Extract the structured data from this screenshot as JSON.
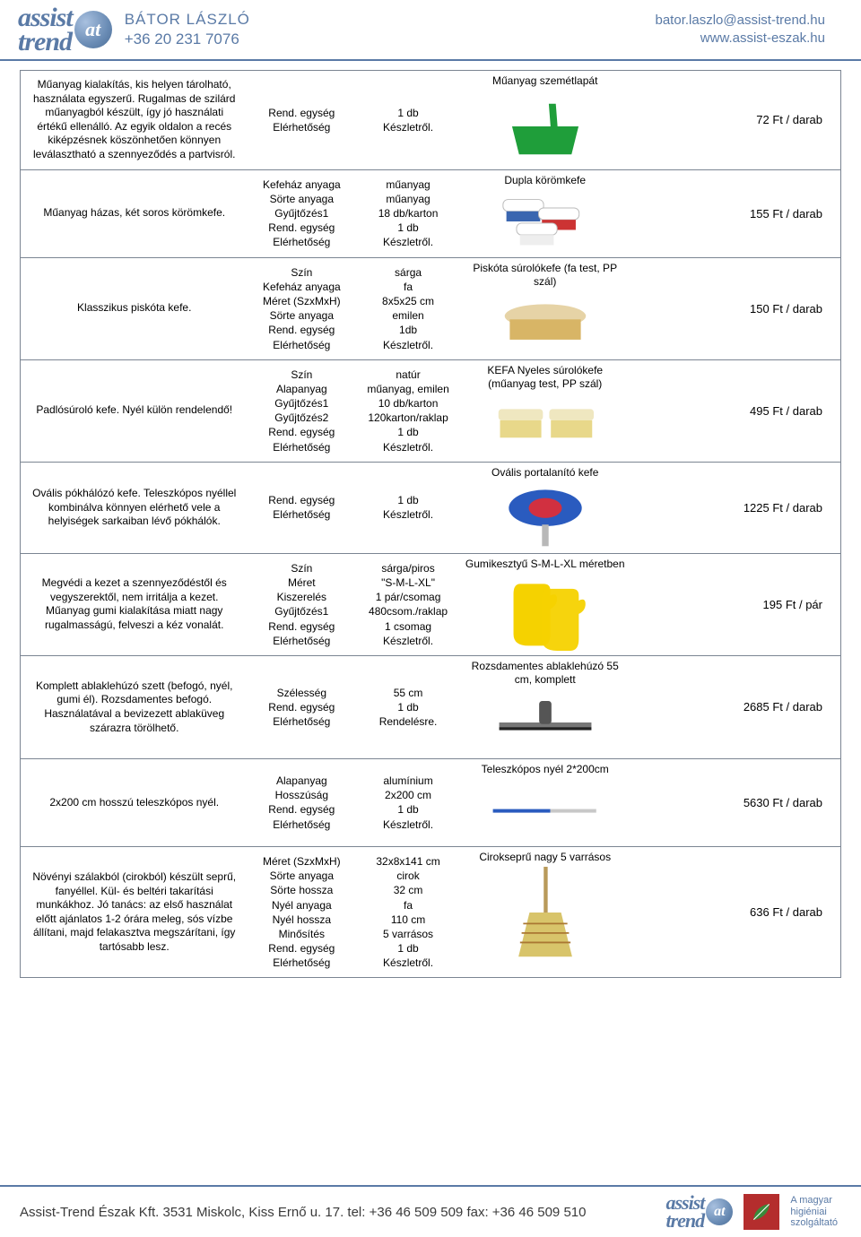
{
  "header": {
    "brand_top": "assist",
    "brand_bottom": "trend",
    "brand_initials": "at",
    "contact_name": "BÁTOR LÁSZLÓ",
    "contact_phone": "+36 20 231 7076",
    "email": "bator.laszlo@assist-trend.hu",
    "website": "www.assist-eszak.hu"
  },
  "footer": {
    "company_line": "Assist-Trend Észak Kft. 3531 Miskolc, Kiss Ernő u. 17. tel: +36 46 509 509 fax: +36 46 509 510",
    "slogan_l1": "A magyar",
    "slogan_l2": "higiéniai",
    "slogan_l3": "szolgáltató",
    "badge_text": "MAGYAR"
  },
  "colors": {
    "rule": "#5a7aa6",
    "border": "#7b8592"
  },
  "rows": [
    {
      "desc": "Műanyag kialakítás, kis helyen tárolható, használata egyszerű. Rugalmas de szilárd műanyagból készült, így jó használati értékű ellenálló. Az egyik oldalon a recés kiképzésnek köszönhetően könnyen leválasztható a szennyeződés a partvisról.",
      "labels": [
        "Rend. egység",
        "Elérhetőség"
      ],
      "values": [
        "1 db",
        "Készletről."
      ],
      "title": "Műanyag szemétlapát",
      "price": "72 Ft / darab",
      "image": {
        "type": "dustpan",
        "fill": "#1f9e3a"
      }
    },
    {
      "desc": "Műanyag házas, két soros körömkefe.",
      "labels": [
        "Kefeház anyaga",
        "Sörte anyaga",
        "Gyűjtőzés1",
        "Rend. egység",
        "Elérhetőség"
      ],
      "values": [
        "műanyag",
        "műanyag",
        "18 db/karton",
        "1 db",
        "Készletről."
      ],
      "title": "Dupla körömkefe",
      "price": "155 Ft / darab",
      "image": {
        "type": "nailbrushes"
      }
    },
    {
      "desc": "Klasszikus piskóta kefe.",
      "labels": [
        "Szín",
        "Kefeház anyaga",
        "Méret (SzxMxH)",
        "Sörte anyaga",
        "Rend. egység",
        "Elérhetőség"
      ],
      "values": [
        "sárga",
        "fa",
        "8x5x25 cm",
        "emilen",
        "1db",
        "Készletről."
      ],
      "title": "Piskóta súrolókefe (fa test, PP szál)",
      "price": "150 Ft / darab",
      "image": {
        "type": "woodbrush",
        "bristle": "#d8b566",
        "handle": "#e6d3a6"
      }
    },
    {
      "desc": "Padlósúroló kefe. Nyél külön rendelendő!",
      "labels": [
        "Szín",
        "Alapanyag",
        "Gyűjtőzés1",
        "Gyűjtőzés2",
        "Rend. egység",
        "Elérhetőség"
      ],
      "values": [
        "natúr",
        "műanyag, emilen",
        "10 db/karton",
        "120karton/raklap",
        "1 db",
        "Készletről."
      ],
      "title": "KEFA Nyeles súrolókefe (műanyag test, PP szál)",
      "price": "495 Ft / darab",
      "image": {
        "type": "deckbrush",
        "bristle": "#e8d88a",
        "body": "#efe7c0"
      }
    },
    {
      "desc": "Ovális pókhálózó kefe. Teleszkópos nyéllel kombinálva könnyen elérhető vele a helyiségek sarkaiban lévő pókhálók.",
      "labels": [
        "Rend. egység",
        "Elérhetőség"
      ],
      "values": [
        "1 db",
        "Készletről."
      ],
      "title": "Ovális portalanító kefe",
      "price": "1225 Ft / darab",
      "image": {
        "type": "duster"
      }
    },
    {
      "desc": "Megvédi a kezet a szennyeződéstől és vegyszerektől, nem irritálja a kezet. Műanyag gumi kialakítása miatt nagy rugalmasságú, felveszi a kéz vonalát.",
      "labels": [
        "Szín",
        "Méret",
        "Kiszerelés",
        "Gyűjtőzés1",
        "Rend. egység",
        "Elérhetőség"
      ],
      "values": [
        "sárga/piros",
        "\"S-M-L-XL\"",
        "1 pár/csomag",
        "480csom./raklap",
        "1 csomag",
        "Készletről."
      ],
      "title": "Gumikesztyű S-M-L-XL méretben",
      "price": "195 Ft / pár",
      "image": {
        "type": "gloves",
        "fill": "#f5d200"
      }
    },
    {
      "desc": "Komplett ablaklehúzó szett (befogó, nyél, gumi él). Rozsdamentes befogó. Használatával a bevizezett ablaküveg szárazra törölhető.",
      "labels": [
        "Szélesség",
        "Rend. egység",
        "Elérhetőség"
      ],
      "values": [
        "55 cm",
        "1 db",
        "Rendelésre."
      ],
      "title": "Rozsdamentes ablaklehúzó 55 cm, komplett",
      "price": "2685 Ft / darab",
      "image": {
        "type": "squeegee"
      }
    },
    {
      "desc": "2x200 cm hosszú teleszkópos nyél.",
      "labels": [
        "Alapanyag",
        "Hosszúság",
        "Rend. egység",
        "Elérhetőség"
      ],
      "values": [
        "alumínium",
        "2x200 cm",
        "1 db",
        "Készletről."
      ],
      "title": "Teleszkópos nyél 2*200cm",
      "price": "5630 Ft / darab",
      "image": {
        "type": "pole"
      }
    },
    {
      "desc": "Növényi szálakból (cirokból) készült seprű, fanyéllel. Kül- és beltéri takarítási munkákhoz. Jó tanács: az első használat előtt ajánlatos 1-2 órára meleg, sós vízbe állítani, majd felakasztva megszárítani, így tartósabb lesz.",
      "labels": [
        "Méret (SzxMxH)",
        "Sörte anyaga",
        "Sörte hossza",
        "Nyél anyaga",
        "Nyél hossza",
        "Minősítés",
        "Rend. egység",
        "Elérhetőség"
      ],
      "values": [
        "32x8x141 cm",
        "cirok",
        "32 cm",
        "fa",
        "110 cm",
        "5 varrásos",
        "1 db",
        "Készletről."
      ],
      "title": "Cirokseprű nagy 5 varrásos",
      "price": "636 Ft / darab",
      "image": {
        "type": "broom",
        "straw": "#d8c46a",
        "handle": "#b99a5a"
      }
    }
  ]
}
